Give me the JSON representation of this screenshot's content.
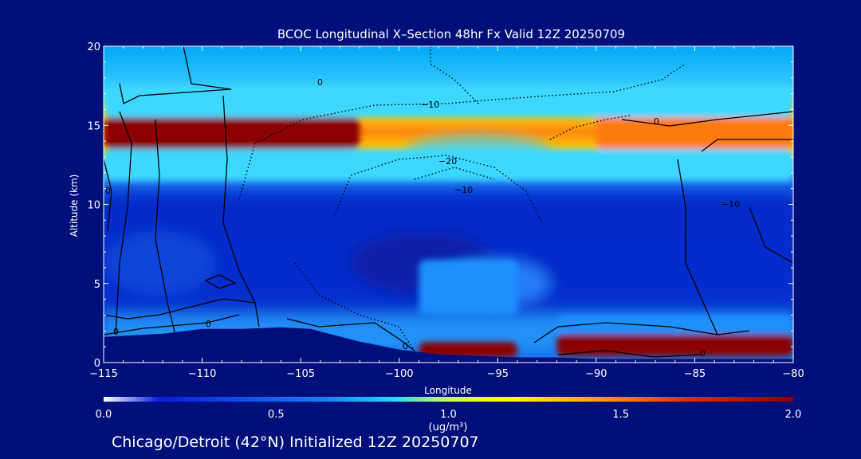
{
  "chart_data": {
    "type": "heatmap",
    "title": "BCOC Longitudinal X–Section 48hr  Fx Valid 12Z 20250709",
    "xlabel": "Longitude",
    "ylabel": "Altitude (km)",
    "xlim": [
      -115,
      -80
    ],
    "ylim": [
      0,
      20
    ],
    "x_ticks": [
      "−115",
      "−110",
      "−105",
      "−100",
      "−95",
      "−90",
      "−85",
      "−80"
    ],
    "x_tick_values": [
      -115,
      -110,
      -105,
      -100,
      -95,
      -90,
      -85,
      -80
    ],
    "y_ticks": [
      "0",
      "5",
      "10",
      "15",
      "20"
    ],
    "y_tick_values": [
      0,
      5,
      10,
      15,
      20
    ],
    "colorbar": {
      "min": 0.0,
      "max": 2.0,
      "ticks": [
        "0.0",
        "0.5",
        "1.0",
        "1.5",
        "2.0"
      ],
      "tick_values": [
        0.0,
        0.5,
        1.0,
        1.5,
        2.0
      ],
      "unit_label": "(ug/m³)",
      "colors": [
        "#ffffff",
        "#0a1be0",
        "#1aa0ff",
        "#33e8ff",
        "#ffff00",
        "#ff7a10",
        "#8b0000"
      ]
    },
    "bcoc_regions": [
      {
        "lon_range": [
          -115,
          -102
        ],
        "alt_range": [
          13.5,
          15.5
        ],
        "value": 2.0
      },
      {
        "lon_range": [
          -90,
          -80
        ],
        "alt_range": [
          13.5,
          15.8
        ],
        "value": 1.5
      },
      {
        "lon_range": [
          -99,
          -94
        ],
        "alt_range": [
          0.3,
          1.3
        ],
        "value": 2.0
      },
      {
        "lon_range": [
          -92,
          -80
        ],
        "alt_range": [
          0.4,
          1.8
        ],
        "value": 2.0
      },
      {
        "lon_range": [
          -115,
          -80
        ],
        "alt_range": [
          11.5,
          13.5
        ],
        "value": 0.9
      },
      {
        "lon_range": [
          -115,
          -80
        ],
        "alt_range": [
          15.5,
          17.5
        ],
        "value": 0.9
      },
      {
        "lon_range": [
          -99,
          -94
        ],
        "alt_range": [
          3,
          6.5
        ],
        "value": 0.6
      },
      {
        "lon_range": [
          -92,
          -80
        ],
        "alt_range": [
          1.8,
          3
        ],
        "value": 0.7
      }
    ],
    "terrain_km": [
      [
        -115,
        1.6
      ],
      [
        -112,
        1.8
      ],
      [
        -110,
        2.1
      ],
      [
        -108,
        2.1
      ],
      [
        -106,
        2.2
      ],
      [
        -104.5,
        2.1
      ],
      [
        -102,
        1.3
      ],
      [
        -100,
        0.8
      ],
      [
        -98,
        0.5
      ],
      [
        -96,
        0.4
      ],
      [
        -94,
        0.3
      ],
      [
        -92,
        0.3
      ],
      [
        -90,
        0.2
      ],
      [
        -85,
        0.2
      ],
      [
        -80,
        0.2
      ]
    ],
    "contour_labels": [
      "0",
      "0",
      "0",
      "0",
      "0",
      "0",
      "0",
      "−10",
      "−20",
      "−10",
      "−10"
    ],
    "footer": "Chicago/Detroit (42°N) Initialized 12Z 20250707"
  }
}
